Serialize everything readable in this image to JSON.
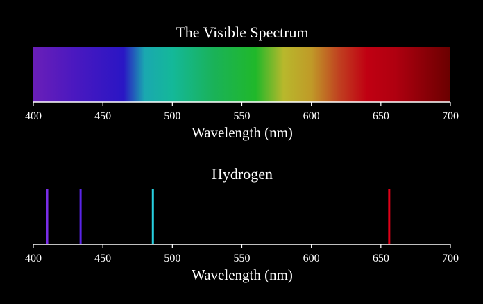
{
  "chart_data": [
    {
      "type": "heatmap",
      "title": "The Visible Spectrum",
      "xlabel": "Wavelength (nm)",
      "xlim": [
        400,
        700
      ],
      "xticks": [
        400,
        450,
        500,
        550,
        600,
        650,
        700
      ],
      "gradient": [
        {
          "wavelength": 400,
          "color": "#6a1fb8"
        },
        {
          "wavelength": 430,
          "color": "#4a18c0"
        },
        {
          "wavelength": 465,
          "color": "#2a16c4"
        },
        {
          "wavelength": 480,
          "color": "#1aa8b0"
        },
        {
          "wavelength": 500,
          "color": "#14b899"
        },
        {
          "wavelength": 530,
          "color": "#1ab258"
        },
        {
          "wavelength": 560,
          "color": "#20b82a"
        },
        {
          "wavelength": 580,
          "color": "#b8b82c"
        },
        {
          "wavelength": 600,
          "color": "#c09a28"
        },
        {
          "wavelength": 620,
          "color": "#c04020"
        },
        {
          "wavelength": 640,
          "color": "#c00012"
        },
        {
          "wavelength": 660,
          "color": "#b00010"
        },
        {
          "wavelength": 700,
          "color": "#6a0000"
        }
      ]
    },
    {
      "type": "line",
      "title": "Hydrogen",
      "xlabel": "Wavelength (nm)",
      "xlim": [
        400,
        700
      ],
      "xticks": [
        400,
        450,
        500,
        550,
        600,
        650,
        700
      ],
      "lines": [
        {
          "wavelength": 410,
          "color": "#7a2ee8"
        },
        {
          "wavelength": 434,
          "color": "#5a24e8"
        },
        {
          "wavelength": 486,
          "color": "#28d0e0"
        },
        {
          "wavelength": 656,
          "color": "#e00018"
        }
      ]
    }
  ]
}
